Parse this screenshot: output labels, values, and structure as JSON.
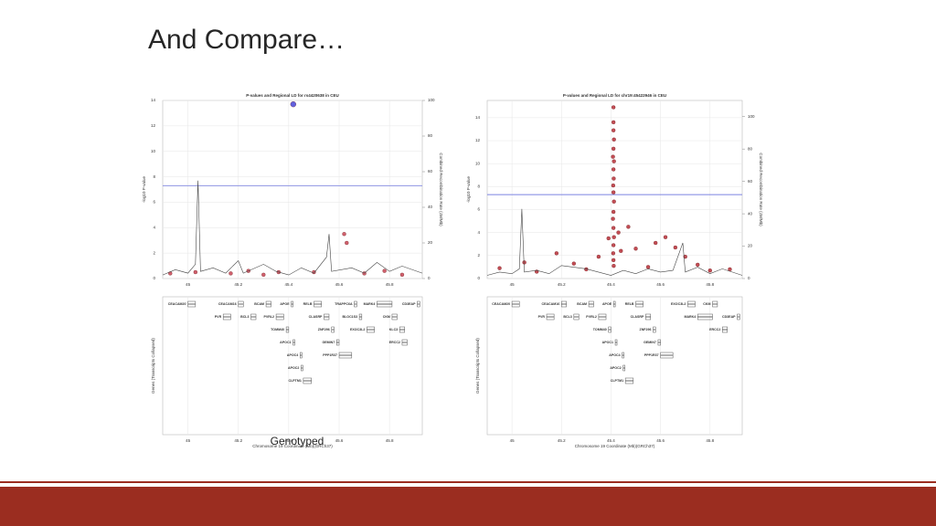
{
  "slide": {
    "title": "And Compare…",
    "caption": "Genotyped"
  },
  "chart_data": [
    {
      "type": "scatter",
      "title": "P-values and Regional LD for rs4420638 in CEU",
      "xlabel": "Chromosome 19 Coordinate (Mb)(GRCh37)",
      "ylabel": "-log10 P-value",
      "y2label": "Combined Recombination Rate (cM/Mb)",
      "genes_label": "Genes (Transcripts Collapsed)",
      "xlim": [
        44.9,
        45.93
      ],
      "ylim": [
        0,
        14
      ],
      "y2lim": [
        0,
        100
      ],
      "xticks": [
        45,
        45.2,
        45.4,
        45.6,
        45.8
      ],
      "yticks": [
        0,
        2,
        4,
        6,
        8,
        10,
        12,
        14
      ],
      "y2ticks": [
        0,
        20,
        40,
        60,
        80,
        100
      ],
      "grid": true,
      "threshold": 7.3,
      "threshold_color": "#8f95e3",
      "series": [
        {
          "color": "#3a3ad6",
          "x": [
            45.418
          ],
          "values": [
            13.7
          ]
        },
        {
          "color": "#c43a4a",
          "x": [
            44.93,
            45.03,
            45.17,
            45.24,
            45.3,
            45.36,
            45.5,
            45.62,
            45.63,
            45.7,
            45.78,
            45.85
          ],
          "values": [
            0.4,
            0.5,
            0.4,
            0.6,
            0.3,
            0.5,
            0.5,
            3.5,
            2.8,
            0.4,
            0.6,
            0.3
          ]
        },
        {
          "axis": "y2",
          "color": "#444444",
          "x": [
            44.9,
            44.95,
            45.0,
            45.03,
            45.04,
            45.05,
            45.1,
            45.15,
            45.2,
            45.22,
            45.3,
            45.35,
            45.4,
            45.45,
            45.5,
            45.55,
            45.56,
            45.57,
            45.65,
            45.7,
            45.75,
            45.8,
            45.85,
            45.93
          ],
          "values": [
            2,
            5,
            3,
            8,
            55,
            4,
            6,
            3,
            10,
            3,
            8,
            4,
            2,
            6,
            3,
            12,
            25,
            4,
            6,
            3,
            9,
            4,
            7,
            3
          ]
        }
      ],
      "genes": [
        {
          "name": "CEACAM20",
          "start": 45.0,
          "end": 45.03
        },
        {
          "name": "CEACAM16",
          "start": 45.2,
          "end": 45.22
        },
        {
          "name": "PVR",
          "start": 45.14,
          "end": 45.17
        },
        {
          "name": "BCL3",
          "start": 45.25,
          "end": 45.27
        },
        {
          "name": "BCAM",
          "start": 45.31,
          "end": 45.33
        },
        {
          "name": "PVRL2",
          "start": 45.35,
          "end": 45.38
        },
        {
          "name": "TOMM40",
          "start": 45.39,
          "end": 45.4
        },
        {
          "name": "APOE",
          "start": 45.41,
          "end": 45.412
        },
        {
          "name": "APOC1",
          "start": 45.417,
          "end": 45.42
        },
        {
          "name": "APOC4",
          "start": 45.445,
          "end": 45.45
        },
        {
          "name": "APOC2",
          "start": 45.449,
          "end": 45.452
        },
        {
          "name": "CLPTM1",
          "start": 45.458,
          "end": 45.49
        },
        {
          "name": "RELB",
          "start": 45.5,
          "end": 45.53
        },
        {
          "name": "CLASRP",
          "start": 45.54,
          "end": 45.56
        },
        {
          "name": "ZNF296",
          "start": 45.57,
          "end": 45.58
        },
        {
          "name": "GEMIN7",
          "start": 45.59,
          "end": 45.6
        },
        {
          "name": "PPP1R37",
          "start": 45.6,
          "end": 45.65
        },
        {
          "name": "TRAPPC6A",
          "start": 45.66,
          "end": 45.67
        },
        {
          "name": "BLOC1S3",
          "start": 45.68,
          "end": 45.69
        },
        {
          "name": "EXOC3L2",
          "start": 45.71,
          "end": 45.74
        },
        {
          "name": "MARK4",
          "start": 45.75,
          "end": 45.81
        },
        {
          "name": "CKM",
          "start": 45.81,
          "end": 45.83
        },
        {
          "name": "KLC3",
          "start": 45.84,
          "end": 45.86
        },
        {
          "name": "ERCC2",
          "start": 45.85,
          "end": 45.87
        },
        {
          "name": "CD3EAP",
          "start": 45.91,
          "end": 45.92
        }
      ]
    },
    {
      "type": "scatter",
      "title": "P-values and Regional LD for chr19:45422946 in CEU",
      "xlabel": "Chromosome 19 Coordinate (Mb)(GRCh37)",
      "ylabel": "-log10 P-value",
      "y2label": "Combined Recombination Rate (cM/Mb)",
      "genes_label": "Genes (Transcripts Collapsed)",
      "xlim": [
        44.9,
        45.93
      ],
      "ylim": [
        0,
        15.5
      ],
      "y2lim": [
        0,
        110
      ],
      "xticks": [
        45,
        45.2,
        45.4,
        45.6,
        45.8
      ],
      "yticks": [
        0,
        2,
        4,
        6,
        8,
        10,
        12,
        14
      ],
      "y2ticks": [
        0,
        20,
        40,
        60,
        80,
        100
      ],
      "grid": true,
      "threshold": 7.3,
      "threshold_color": "#7b82e0",
      "series": [
        {
          "color": "#b3202a",
          "x": [
            45.41,
            45.41,
            45.41,
            45.412,
            45.41,
            45.408,
            45.412,
            45.41,
            45.411,
            45.409,
            45.41,
            45.412,
            45.41,
            45.408,
            45.41,
            45.412,
            45.41,
            45.409,
            45.41,
            45.411,
            45.39,
            45.43,
            45.44,
            45.47,
            45.5,
            45.58,
            45.62,
            45.66,
            45.7,
            45.05,
            45.18,
            45.25,
            45.3,
            45.35,
            45.55,
            45.75,
            45.8,
            44.95,
            45.1,
            45.88
          ],
          "values": [
            14.9,
            13.6,
            12.9,
            12.1,
            11.3,
            10.6,
            10.2,
            9.5,
            8.7,
            8.1,
            7.5,
            6.7,
            5.8,
            5.2,
            4.4,
            3.6,
            2.9,
            2.2,
            1.6,
            1.1,
            3.5,
            4.0,
            2.4,
            4.5,
            2.6,
            3.1,
            3.6,
            2.7,
            1.9,
            1.4,
            2.2,
            1.3,
            0.8,
            1.9,
            1.0,
            1.2,
            0.7,
            0.9,
            0.6,
            0.8
          ]
        },
        {
          "axis": "y2",
          "color": "#444444",
          "x": [
            44.9,
            44.95,
            45.0,
            45.03,
            45.04,
            45.05,
            45.1,
            45.15,
            45.2,
            45.3,
            45.4,
            45.45,
            45.5,
            45.55,
            45.6,
            45.65,
            45.69,
            45.7,
            45.75,
            45.8,
            45.85,
            45.93
          ],
          "values": [
            2,
            4,
            3,
            6,
            43,
            4,
            5,
            3,
            8,
            6,
            2,
            5,
            3,
            6,
            4,
            5,
            22,
            4,
            7,
            3,
            6,
            2
          ]
        }
      ],
      "genes": [
        {
          "name": "CEACAM20",
          "start": 45.0,
          "end": 45.03
        },
        {
          "name": "CEACAM16",
          "start": 45.2,
          "end": 45.22
        },
        {
          "name": "PVR",
          "start": 45.14,
          "end": 45.17
        },
        {
          "name": "BCL3",
          "start": 45.25,
          "end": 45.27
        },
        {
          "name": "BCAM",
          "start": 45.31,
          "end": 45.33
        },
        {
          "name": "PVRL2",
          "start": 45.35,
          "end": 45.38
        },
        {
          "name": "TOMM40",
          "start": 45.39,
          "end": 45.4
        },
        {
          "name": "APOE",
          "start": 45.41,
          "end": 45.412
        },
        {
          "name": "APOC1",
          "start": 45.417,
          "end": 45.42
        },
        {
          "name": "APOC4",
          "start": 45.445,
          "end": 45.45
        },
        {
          "name": "APOC2",
          "start": 45.449,
          "end": 45.452
        },
        {
          "name": "CLPTM1",
          "start": 45.458,
          "end": 45.49
        },
        {
          "name": "RELB",
          "start": 45.5,
          "end": 45.53
        },
        {
          "name": "CLASRP",
          "start": 45.54,
          "end": 45.56
        },
        {
          "name": "ZNF296",
          "start": 45.57,
          "end": 45.58
        },
        {
          "name": "GEMIN7",
          "start": 45.59,
          "end": 45.6
        },
        {
          "name": "PPP1R37",
          "start": 45.6,
          "end": 45.65
        },
        {
          "name": "EXOC3L2",
          "start": 45.71,
          "end": 45.74
        },
        {
          "name": "MARK4",
          "start": 45.75,
          "end": 45.81
        },
        {
          "name": "CKM",
          "start": 45.81,
          "end": 45.83
        },
        {
          "name": "ERCC2",
          "start": 45.85,
          "end": 45.87
        },
        {
          "name": "CD3EAP",
          "start": 45.91,
          "end": 45.92
        }
      ]
    }
  ]
}
